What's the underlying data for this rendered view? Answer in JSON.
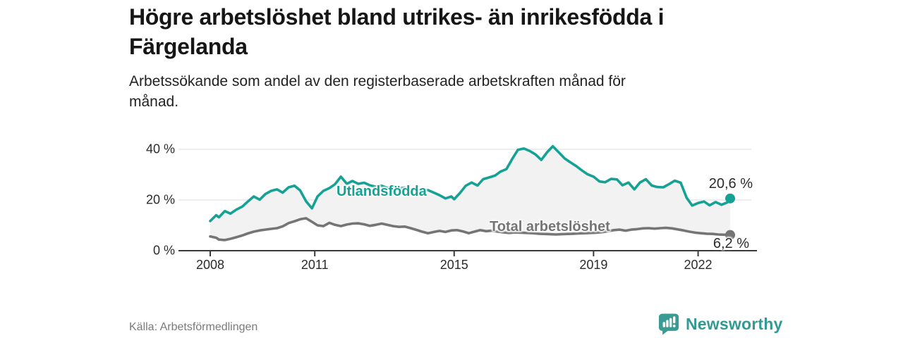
{
  "header": {
    "title": "Högre arbetslöshet bland utrikes- än inrikesfödda i Färgelanda",
    "subtitle": "Arbetssökande som andel av den registerbaserade arbetskraften månad för månad."
  },
  "footer": {
    "source": "Källa: Arbetsförmedlingen",
    "brand": "Newsworthy",
    "brand_color": "#339a93"
  },
  "chart_data": {
    "type": "line",
    "title": "Högre arbetslöshet bland utrikes- än inrikesfödda i Färgelanda",
    "subtitle": "Arbetssökande som andel av den registerbaserade arbetskraften månad för månad.",
    "unit": "%",
    "xlim": [
      2008,
      2022.92
    ],
    "ylim": [
      0,
      40
    ],
    "grid": "horizontal",
    "legend_position": "inline-labels",
    "band_color": "#f2f2f2",
    "axis_color": "#3a3a3a",
    "grid_color": "#e2e2e2",
    "y_ticks": [
      {
        "label": "40 %",
        "value": 40
      },
      {
        "label": "20 %",
        "value": 20
      },
      {
        "label": "0 %",
        "value": 0
      }
    ],
    "x_ticks": [
      {
        "label": "2008",
        "year": 2008
      },
      {
        "label": "2011",
        "year": 2011
      },
      {
        "label": "2015",
        "year": 2015
      },
      {
        "label": "2019",
        "year": 2019
      },
      {
        "label": "2022",
        "year": 2022
      }
    ],
    "series": [
      {
        "name": "Utlandsfödda",
        "color": "#16a195",
        "end_label": "20,6 %",
        "end_value": 20.6,
        "points": [
          [
            2008.0,
            11.7
          ],
          [
            2008.17,
            14.0
          ],
          [
            2008.25,
            13.2
          ],
          [
            2008.42,
            15.6
          ],
          [
            2008.58,
            14.6
          ],
          [
            2008.75,
            16.2
          ],
          [
            2008.92,
            17.4
          ],
          [
            2009.08,
            19.4
          ],
          [
            2009.25,
            21.4
          ],
          [
            2009.42,
            20.1
          ],
          [
            2009.58,
            22.3
          ],
          [
            2009.75,
            23.6
          ],
          [
            2009.92,
            24.2
          ],
          [
            2010.08,
            22.9
          ],
          [
            2010.25,
            25.0
          ],
          [
            2010.42,
            25.6
          ],
          [
            2010.58,
            23.8
          ],
          [
            2010.75,
            19.5
          ],
          [
            2010.92,
            16.7
          ],
          [
            2011.08,
            21.4
          ],
          [
            2011.25,
            23.6
          ],
          [
            2011.42,
            24.7
          ],
          [
            2011.58,
            26.2
          ],
          [
            2011.75,
            29.2
          ],
          [
            2011.92,
            26.4
          ],
          [
            2012.08,
            27.5
          ],
          [
            2012.25,
            26.4
          ],
          [
            2012.42,
            26.8
          ],
          [
            2012.58,
            25.8
          ],
          [
            2012.75,
            25.2
          ],
          [
            2012.92,
            25.6
          ],
          [
            2013.08,
            24.8
          ],
          [
            2013.25,
            25.3
          ],
          [
            2013.42,
            24.6
          ],
          [
            2013.58,
            24.9
          ],
          [
            2013.75,
            24.1
          ],
          [
            2013.92,
            24.4
          ],
          [
            2014.08,
            23.6
          ],
          [
            2014.25,
            23.9
          ],
          [
            2014.42,
            22.9
          ],
          [
            2014.58,
            21.9
          ],
          [
            2014.75,
            20.6
          ],
          [
            2014.92,
            21.4
          ],
          [
            2015.0,
            20.3
          ],
          [
            2015.17,
            22.8
          ],
          [
            2015.33,
            25.6
          ],
          [
            2015.5,
            26.9
          ],
          [
            2015.67,
            25.7
          ],
          [
            2015.83,
            28.2
          ],
          [
            2016.0,
            28.9
          ],
          [
            2016.17,
            29.6
          ],
          [
            2016.33,
            31.2
          ],
          [
            2016.5,
            32.2
          ],
          [
            2016.67,
            36.3
          ],
          [
            2016.83,
            39.8
          ],
          [
            2017.0,
            40.3
          ],
          [
            2017.17,
            39.3
          ],
          [
            2017.33,
            38.0
          ],
          [
            2017.5,
            35.8
          ],
          [
            2017.67,
            38.9
          ],
          [
            2017.83,
            41.2
          ],
          [
            2018.0,
            38.8
          ],
          [
            2018.17,
            36.4
          ],
          [
            2018.33,
            34.9
          ],
          [
            2018.5,
            33.4
          ],
          [
            2018.67,
            31.6
          ],
          [
            2018.83,
            30.1
          ],
          [
            2019.0,
            29.2
          ],
          [
            2019.17,
            27.3
          ],
          [
            2019.33,
            27.0
          ],
          [
            2019.5,
            28.3
          ],
          [
            2019.67,
            28.1
          ],
          [
            2019.83,
            25.8
          ],
          [
            2020.0,
            26.9
          ],
          [
            2020.17,
            24.2
          ],
          [
            2020.33,
            26.9
          ],
          [
            2020.5,
            28.2
          ],
          [
            2020.67,
            25.7
          ],
          [
            2020.83,
            25.1
          ],
          [
            2021.0,
            25.0
          ],
          [
            2021.17,
            26.3
          ],
          [
            2021.33,
            27.6
          ],
          [
            2021.5,
            26.8
          ],
          [
            2021.67,
            20.9
          ],
          [
            2021.83,
            17.8
          ],
          [
            2022.0,
            18.8
          ],
          [
            2022.17,
            19.4
          ],
          [
            2022.33,
            17.9
          ],
          [
            2022.5,
            19.2
          ],
          [
            2022.67,
            18.1
          ],
          [
            2022.83,
            19.0
          ],
          [
            2022.92,
            20.6
          ]
        ]
      },
      {
        "name": "Total arbetslöshet",
        "color": "#757575",
        "end_label": "6,2 %",
        "end_value": 6.2,
        "points": [
          [
            2008.0,
            5.6
          ],
          [
            2008.17,
            5.1
          ],
          [
            2008.25,
            4.4
          ],
          [
            2008.42,
            4.2
          ],
          [
            2008.58,
            4.7
          ],
          [
            2008.75,
            5.3
          ],
          [
            2008.92,
            6.0
          ],
          [
            2009.08,
            6.8
          ],
          [
            2009.25,
            7.5
          ],
          [
            2009.42,
            8.0
          ],
          [
            2009.58,
            8.3
          ],
          [
            2009.75,
            8.6
          ],
          [
            2009.92,
            8.9
          ],
          [
            2010.08,
            9.6
          ],
          [
            2010.25,
            10.9
          ],
          [
            2010.42,
            11.6
          ],
          [
            2010.58,
            12.4
          ],
          [
            2010.75,
            12.8
          ],
          [
            2010.92,
            11.4
          ],
          [
            2011.08,
            10.0
          ],
          [
            2011.25,
            9.7
          ],
          [
            2011.42,
            11.0
          ],
          [
            2011.58,
            10.2
          ],
          [
            2011.75,
            9.7
          ],
          [
            2011.92,
            10.3
          ],
          [
            2012.08,
            10.7
          ],
          [
            2012.25,
            10.8
          ],
          [
            2012.42,
            10.4
          ],
          [
            2012.58,
            9.8
          ],
          [
            2012.75,
            10.2
          ],
          [
            2012.92,
            10.7
          ],
          [
            2013.08,
            10.2
          ],
          [
            2013.25,
            9.7
          ],
          [
            2013.42,
            9.4
          ],
          [
            2013.58,
            9.5
          ],
          [
            2013.75,
            8.9
          ],
          [
            2013.92,
            8.2
          ],
          [
            2014.08,
            7.5
          ],
          [
            2014.25,
            6.9
          ],
          [
            2014.42,
            7.4
          ],
          [
            2014.58,
            7.8
          ],
          [
            2014.75,
            7.4
          ],
          [
            2014.92,
            8.0
          ],
          [
            2015.08,
            8.1
          ],
          [
            2015.25,
            7.6
          ],
          [
            2015.42,
            6.9
          ],
          [
            2015.58,
            7.5
          ],
          [
            2015.75,
            8.1
          ],
          [
            2015.92,
            7.7
          ],
          [
            2016.08,
            7.9
          ],
          [
            2016.25,
            7.5
          ],
          [
            2016.42,
            7.2
          ],
          [
            2016.58,
            7.0
          ],
          [
            2016.75,
            7.2
          ],
          [
            2016.92,
            7.1
          ],
          [
            2017.08,
            7.0
          ],
          [
            2017.25,
            6.9
          ],
          [
            2017.42,
            6.7
          ],
          [
            2017.58,
            6.6
          ],
          [
            2017.75,
            6.5
          ],
          [
            2017.92,
            6.4
          ],
          [
            2018.08,
            6.5
          ],
          [
            2018.25,
            6.6
          ],
          [
            2018.42,
            6.7
          ],
          [
            2018.58,
            6.8
          ],
          [
            2018.75,
            6.9
          ],
          [
            2018.92,
            7.0
          ],
          [
            2019.08,
            7.1
          ],
          [
            2019.25,
            7.3
          ],
          [
            2019.42,
            7.7
          ],
          [
            2019.58,
            8.1
          ],
          [
            2019.75,
            8.3
          ],
          [
            2019.92,
            7.9
          ],
          [
            2020.08,
            8.3
          ],
          [
            2020.25,
            8.5
          ],
          [
            2020.42,
            8.8
          ],
          [
            2020.58,
            8.9
          ],
          [
            2020.75,
            8.7
          ],
          [
            2020.92,
            8.9
          ],
          [
            2021.08,
            9.0
          ],
          [
            2021.25,
            8.8
          ],
          [
            2021.42,
            8.4
          ],
          [
            2021.58,
            8.0
          ],
          [
            2021.75,
            7.5
          ],
          [
            2021.92,
            7.1
          ],
          [
            2022.08,
            6.9
          ],
          [
            2022.25,
            6.7
          ],
          [
            2022.42,
            6.6
          ],
          [
            2022.58,
            6.4
          ],
          [
            2022.75,
            6.3
          ],
          [
            2022.92,
            6.2
          ]
        ]
      }
    ]
  }
}
